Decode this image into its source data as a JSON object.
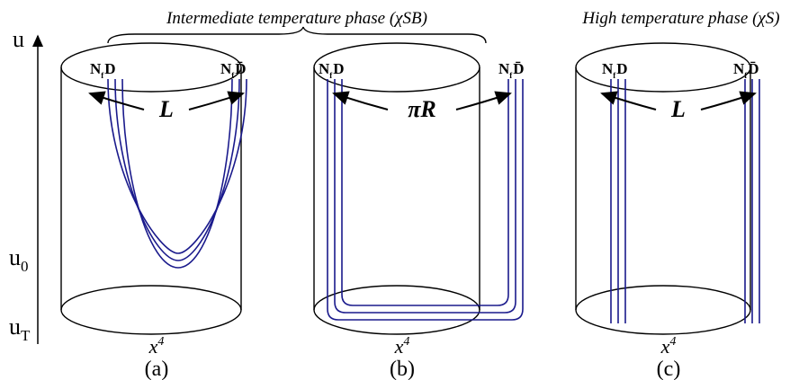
{
  "title_intermediate": "Intermediate temperature phase (χSB)",
  "title_high": "High temperature phase (χS)",
  "axis": {
    "top": "u",
    "u0": {
      "base": "u",
      "sub": "0"
    },
    "uT": {
      "base": "u",
      "sub": "T"
    }
  },
  "panels": [
    {
      "left_label": {
        "n": "N",
        "sub": "f",
        "d": "D"
      },
      "right_label": {
        "n": "N",
        "sub": "f",
        "d": "D̄"
      },
      "separation": "L",
      "x_label": {
        "base": "x",
        "sup": "4"
      },
      "caption": "(a)"
    },
    {
      "left_label": {
        "n": "N",
        "sub": "f",
        "d": "D"
      },
      "right_label": {
        "n": "N",
        "sub": "f",
        "d": "D̄"
      },
      "separation": "πR",
      "x_label": {
        "base": "x",
        "sup": "4"
      },
      "caption": "(b)"
    },
    {
      "left_label": {
        "n": "N",
        "sub": "f",
        "d": "D"
      },
      "right_label": {
        "n": "N",
        "sub": "f",
        "d": "D̄"
      },
      "separation": "L",
      "x_label": {
        "base": "x",
        "sup": "4"
      },
      "caption": "(c)"
    }
  ]
}
